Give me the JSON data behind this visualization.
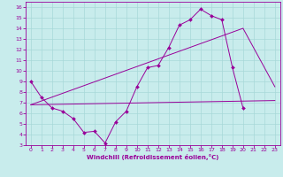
{
  "background_color": "#c8ecec",
  "line_color": "#990099",
  "grid_color": "#a8d8d8",
  "xlabel": "Windchill (Refroidissement éolien,°C)",
  "xlim": [
    -0.5,
    23.5
  ],
  "ylim": [
    3,
    16.5
  ],
  "xticks": [
    0,
    1,
    2,
    3,
    4,
    5,
    6,
    7,
    8,
    9,
    10,
    11,
    12,
    13,
    14,
    15,
    16,
    17,
    18,
    19,
    20,
    21,
    22,
    23
  ],
  "yticks": [
    3,
    4,
    5,
    6,
    7,
    8,
    9,
    10,
    11,
    12,
    13,
    14,
    15,
    16
  ],
  "series_main": {
    "x": [
      0,
      1,
      2,
      3,
      4,
      5,
      6,
      7,
      8,
      9,
      10,
      11,
      12,
      13,
      14,
      15,
      16,
      17,
      18,
      19,
      20
    ],
    "y": [
      9.0,
      7.5,
      6.5,
      6.2,
      5.5,
      4.2,
      4.3,
      3.2,
      5.2,
      6.2,
      8.5,
      10.3,
      10.5,
      12.2,
      14.3,
      14.8,
      15.8,
      15.2,
      14.8,
      10.3,
      6.5
    ]
  },
  "series_lower": {
    "x": [
      0,
      23
    ],
    "y": [
      6.8,
      7.2
    ]
  },
  "series_upper": {
    "x": [
      0,
      20,
      23
    ],
    "y": [
      6.8,
      14.0,
      8.5
    ]
  }
}
